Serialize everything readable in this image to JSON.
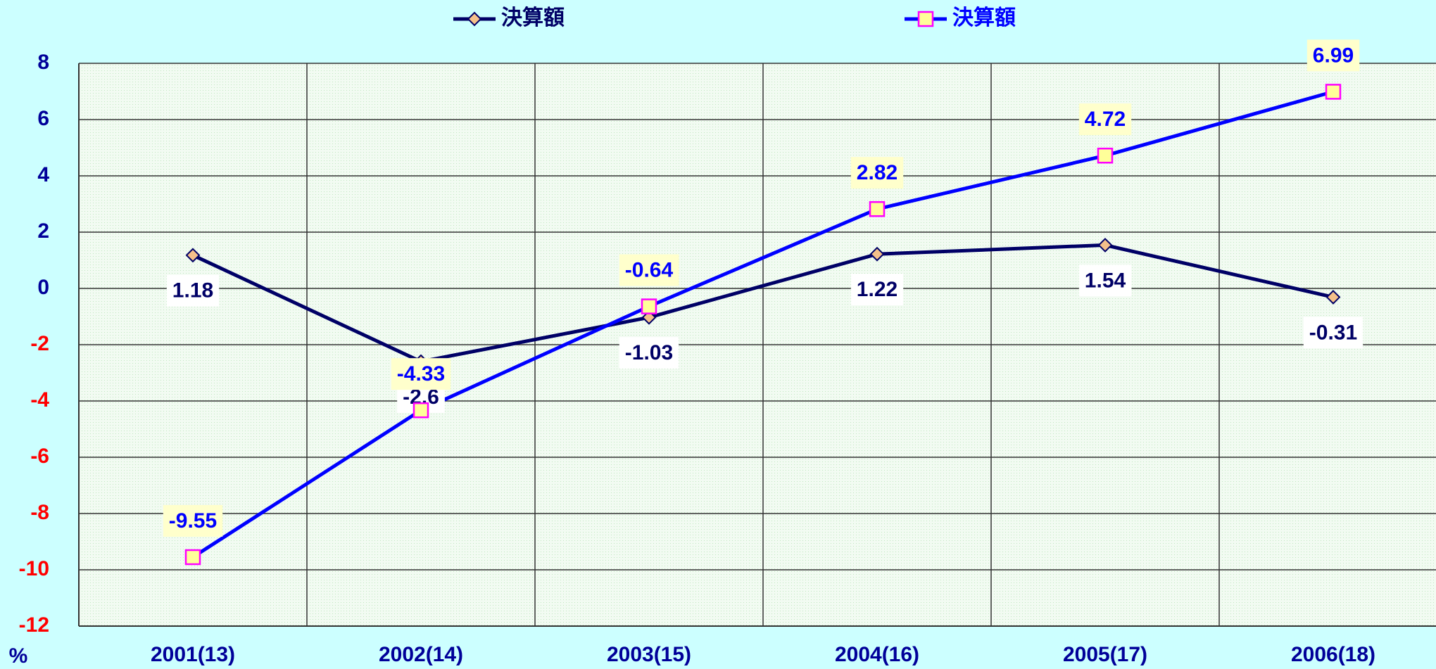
{
  "chart_data": {
    "type": "line",
    "y_label": "%",
    "categories": [
      "2001(13)",
      "2002(14)",
      "2003(15)",
      "2004(16)",
      "2005(17)",
      "2006(18)"
    ],
    "series": [
      {
        "name": "決算額",
        "color": "#000066",
        "marker": "diamond",
        "marker_fill": "#f5c08a",
        "label_background": "#ffffff",
        "label_position": "below",
        "values": [
          1.18,
          -2.6,
          -1.03,
          1.22,
          1.54,
          -0.31
        ]
      },
      {
        "name": "決算額",
        "color": "#0000ff",
        "marker": "square",
        "marker_fill": "#ffff99",
        "marker_stroke": "#ff00ff",
        "label_background": "#ffffcc",
        "label_position": "above",
        "values": [
          -9.55,
          -4.33,
          -0.64,
          2.82,
          4.72,
          6.99
        ]
      }
    ],
    "ylim": [
      -12,
      8
    ],
    "yticks": [
      -12,
      -10,
      -8,
      -6,
      -4,
      -2,
      0,
      2,
      4,
      6,
      8
    ],
    "tick_color": "#000099",
    "negative_tick_color": "#ff0000",
    "grid": true,
    "legend": "top"
  }
}
